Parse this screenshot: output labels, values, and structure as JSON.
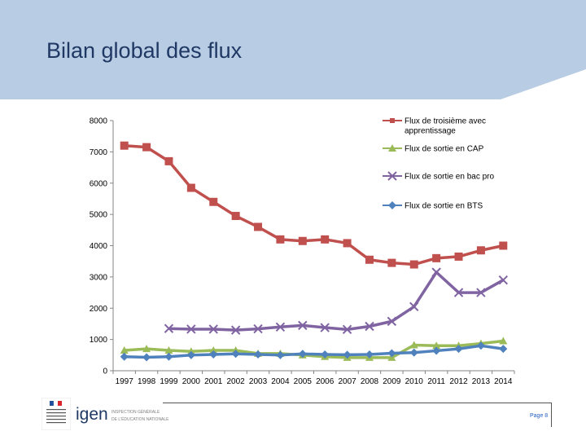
{
  "slide": {
    "title": "Bilan global des flux",
    "page_label": "Page 8",
    "logo": {
      "brand": "igen",
      "line1": "INSPECTION GÉNÉRALE",
      "line2": "DE L'ÉDUCATION NATIONALE"
    },
    "colors": {
      "band": "#b8cce4",
      "title": "#1f3864"
    }
  },
  "chart_data": {
    "type": "line",
    "title": "",
    "xlabel": "",
    "ylabel": "",
    "ylim": [
      0,
      8000
    ],
    "yticks": [
      0,
      1000,
      2000,
      3000,
      4000,
      5000,
      6000,
      7000,
      8000
    ],
    "categories": [
      "1997",
      "1998",
      "1999",
      "2000",
      "2001",
      "2002",
      "2003",
      "2004",
      "2005",
      "2006",
      "2007",
      "2008",
      "2009",
      "2010",
      "2011",
      "2012",
      "2013",
      "2014"
    ],
    "legend_position": "top-right",
    "series": [
      {
        "name": "Flux de troisième avec apprentissage",
        "legend_lines": [
          "Flux de troisième avec",
          "apprentissage"
        ],
        "color": "#c0504d",
        "marker": "square",
        "values": [
          7200,
          7150,
          6700,
          5850,
          5400,
          4950,
          4600,
          4200,
          4150,
          4200,
          4080,
          3550,
          3450,
          3400,
          3600,
          3650,
          3850,
          4000
        ]
      },
      {
        "name": "Flux de sortie en CAP",
        "legend_lines": [
          "Flux de sortie en CAP"
        ],
        "color": "#9bbb59",
        "marker": "triangle",
        "values": [
          650,
          700,
          650,
          620,
          650,
          650,
          550,
          550,
          500,
          450,
          420,
          420,
          420,
          820,
          800,
          800,
          870,
          950
        ]
      },
      {
        "name": "Flux de sortie en bac pro",
        "legend_lines": [
          "Flux de sortie en bac pro"
        ],
        "color": "#8064a2",
        "marker": "x",
        "values": [
          null,
          null,
          1350,
          1330,
          1330,
          1300,
          1340,
          1400,
          1450,
          1380,
          1320,
          1420,
          1580,
          2050,
          3150,
          2500,
          2500,
          2900
        ]
      },
      {
        "name": "Flux de sortie en BTS",
        "legend_lines": [
          "Flux de sortie en BTS"
        ],
        "color": "#4f81bd",
        "marker": "diamond",
        "values": [
          450,
          430,
          450,
          500,
          520,
          540,
          520,
          500,
          540,
          520,
          510,
          520,
          560,
          580,
          640,
          700,
          800,
          700
        ]
      }
    ]
  }
}
